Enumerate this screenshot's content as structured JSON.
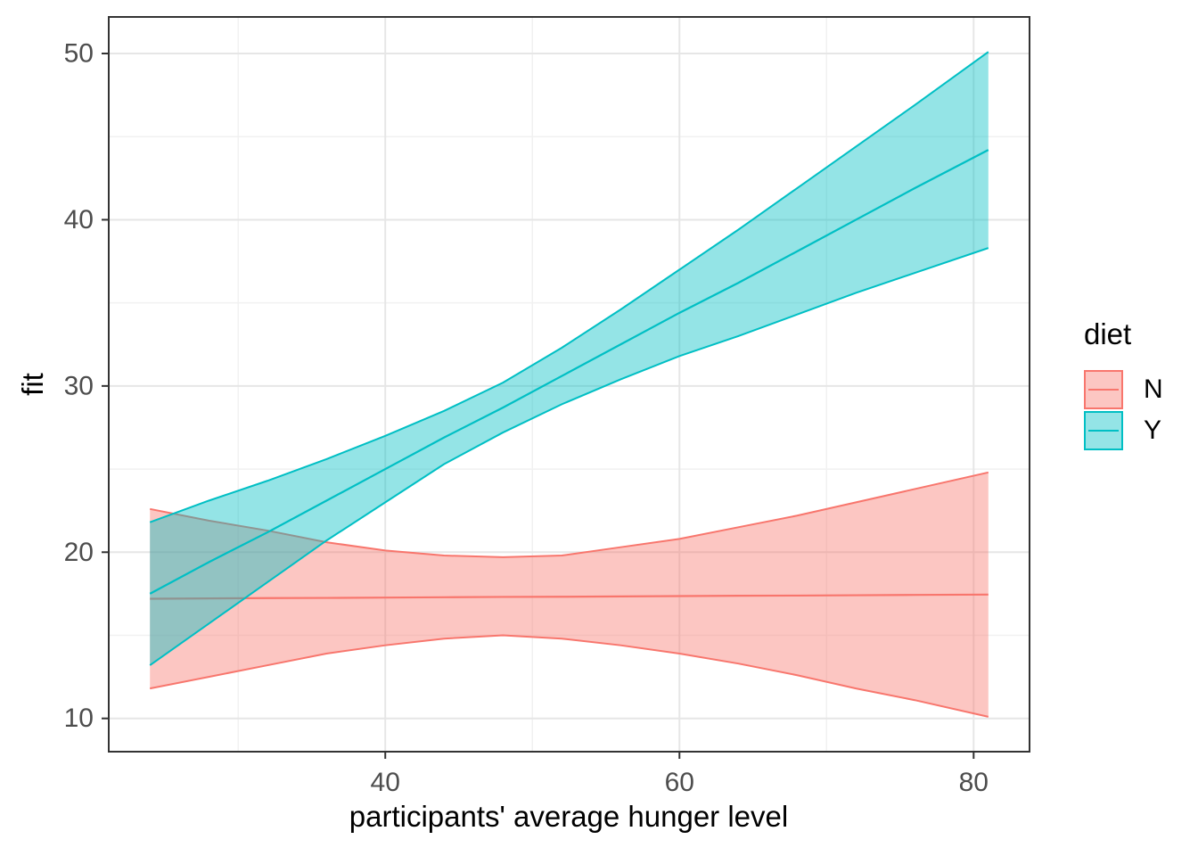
{
  "chart_data": {
    "type": "line",
    "title": "",
    "xlabel": "participants' average hunger level",
    "ylabel": "fit",
    "xlim": [
      21.2,
      83.8
    ],
    "ylim": [
      8.0,
      52.2
    ],
    "x_ticks": [
      40,
      60,
      80
    ],
    "x_minor_ticks": [
      30,
      50,
      70
    ],
    "y_ticks": [
      10,
      20,
      30,
      40,
      50
    ],
    "y_minor_ticks": [
      15,
      25,
      35,
      45
    ],
    "grid": true,
    "legend": {
      "title": "diet",
      "position": "right",
      "entries": [
        {
          "label": "N",
          "color": "#F8766D",
          "fill_opacity": 0.42
        },
        {
          "label": "Y",
          "color": "#00BFC4",
          "fill_opacity": 0.42
        }
      ]
    },
    "series": [
      {
        "name": "N",
        "color": "#F8766D",
        "x": [
          24,
          28,
          32,
          36,
          40,
          44,
          48,
          52,
          56,
          60,
          64,
          68,
          72,
          76,
          81
        ],
        "fit": [
          17.2,
          17.22,
          17.24,
          17.25,
          17.27,
          17.29,
          17.31,
          17.32,
          17.34,
          17.36,
          17.38,
          17.39,
          17.41,
          17.43,
          17.45
        ],
        "lower": [
          11.8,
          12.5,
          13.2,
          13.9,
          14.4,
          14.8,
          15.0,
          14.8,
          14.4,
          13.9,
          13.3,
          12.6,
          11.8,
          11.1,
          10.1
        ],
        "upper": [
          22.6,
          21.9,
          21.3,
          20.6,
          20.1,
          19.8,
          19.7,
          19.8,
          20.3,
          20.8,
          21.5,
          22.2,
          23.0,
          23.8,
          24.8
        ]
      },
      {
        "name": "Y",
        "color": "#00BFC4",
        "x": [
          24,
          28,
          32,
          36,
          40,
          44,
          48,
          52,
          56,
          60,
          64,
          68,
          72,
          76,
          81
        ],
        "fit": [
          17.5,
          19.4,
          21.2,
          23.1,
          25.0,
          26.9,
          28.7,
          30.6,
          32.5,
          34.4,
          36.2,
          38.1,
          40.0,
          41.9,
          44.2
        ],
        "lower": [
          13.2,
          15.7,
          18.2,
          20.7,
          23.0,
          25.3,
          27.2,
          28.9,
          30.4,
          31.8,
          33.0,
          34.3,
          35.6,
          36.8,
          38.3
        ],
        "upper": [
          21.8,
          23.1,
          24.3,
          25.6,
          27.0,
          28.5,
          30.2,
          32.3,
          34.6,
          37.0,
          39.4,
          41.9,
          44.4,
          46.9,
          50.1
        ]
      }
    ],
    "colors": {
      "panel_background": "#FFFFFF",
      "panel_border": "#333333",
      "grid_major": "#E6E6E6",
      "grid_minor": "#F1F1F1",
      "tick_mark": "#333333",
      "axis_text": "#4D4D4D"
    }
  }
}
